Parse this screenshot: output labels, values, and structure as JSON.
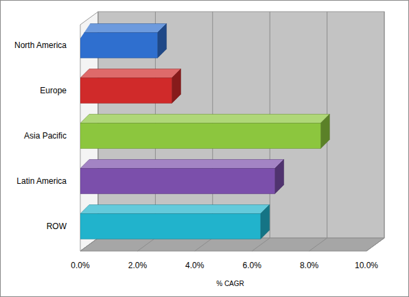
{
  "chart_data": {
    "type": "bar",
    "orientation": "horizontal",
    "x_label": "% CAGR",
    "categories": [
      "North America",
      "Europe",
      "Asia Pacific",
      "Latin America",
      "ROW"
    ],
    "values": [
      2.7,
      3.2,
      8.4,
      6.8,
      6.3
    ],
    "colors": [
      "#2f6fcf",
      "#d02a2a",
      "#8cc63e",
      "#7b4fab",
      "#21b3cc"
    ],
    "xlim": [
      0,
      10
    ],
    "xticks": [
      {
        "value": 0,
        "label": "0.0%"
      },
      {
        "value": 2,
        "label": "2.0%"
      },
      {
        "value": 4,
        "label": "4.0%"
      },
      {
        "value": 6,
        "label": "6.0%"
      },
      {
        "value": 8,
        "label": "8.0%"
      },
      {
        "value": 10,
        "label": "10.0%"
      }
    ],
    "grid": true
  }
}
